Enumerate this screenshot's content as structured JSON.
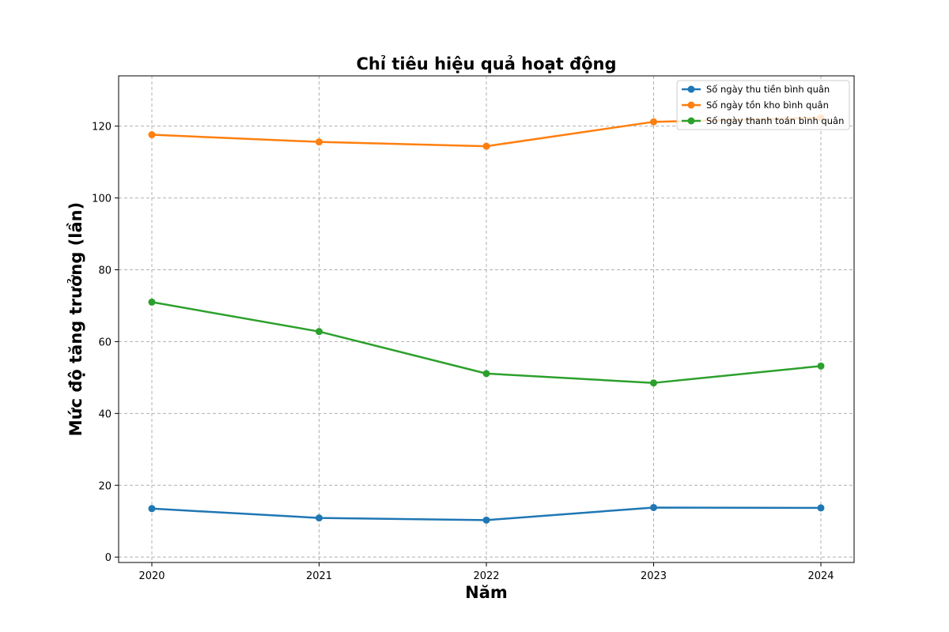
{
  "chart_data": {
    "type": "line",
    "title": "Chỉ tiêu hiệu quả hoạt động",
    "xlabel": "Năm",
    "ylabel": "Mức độ tăng trưởng (lần)",
    "x": [
      "2020",
      "2021",
      "2022",
      "2023",
      "2024"
    ],
    "ylim": [
      -1.5,
      134
    ],
    "yticks": [
      0,
      20,
      40,
      60,
      80,
      100,
      120
    ],
    "grid": true,
    "legend_position": "top-right",
    "series": [
      {
        "name": "Số ngày thu tiền bình quân",
        "color": "#1f77b4",
        "values": [
          13.5,
          10.9,
          10.3,
          13.8,
          13.7
        ]
      },
      {
        "name": "Số ngày tồn kho bình quân",
        "color": "#ff7f0e",
        "values": [
          117.6,
          115.6,
          114.4,
          121.2,
          122.3
        ]
      },
      {
        "name": "Số ngày thanh toán bình quân",
        "color": "#2ca02c",
        "values": [
          71.0,
          62.8,
          51.1,
          48.5,
          53.2
        ]
      }
    ]
  }
}
